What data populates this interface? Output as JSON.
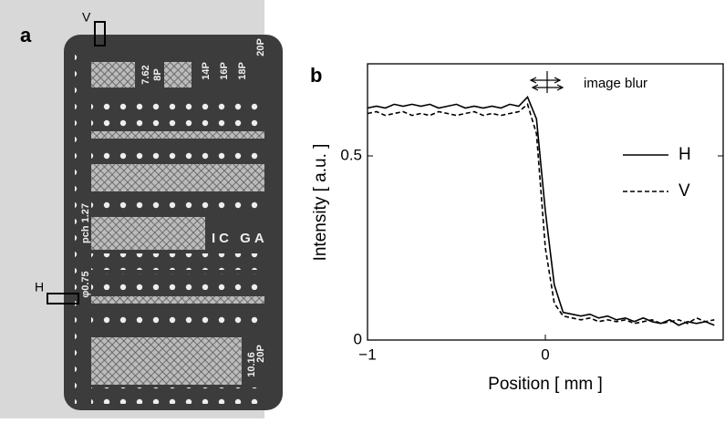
{
  "panel_a": {
    "label": "a",
    "marker_v": "V",
    "marker_h": "H",
    "texts": [
      "7.62",
      "8P",
      "14P",
      "16P",
      "18P",
      "20P",
      "IC GA",
      "pch 1.27",
      "φ0.75",
      "10.16",
      "20P"
    ]
  },
  "chart_data": {
    "type": "line",
    "panel_label": "b",
    "x_label": "Position [ mm ]",
    "y_label": "Intensity  [ a.u. ]",
    "annotation": "image blur",
    "x": [
      -1,
      -0.95,
      -0.9,
      -0.85,
      -0.8,
      -0.75,
      -0.7,
      -0.65,
      -0.6,
      -0.55,
      -0.5,
      -0.45,
      -0.4,
      -0.35,
      -0.3,
      -0.25,
      -0.2,
      -0.15,
      -0.1,
      -0.05,
      0,
      0.05,
      0.1,
      0.15,
      0.2,
      0.25,
      0.3,
      0.35,
      0.4,
      0.45,
      0.5,
      0.55,
      0.6,
      0.65,
      0.7,
      0.75,
      0.8,
      0.85,
      0.9,
      0.95
    ],
    "series": [
      {
        "name": "H",
        "color": "#000000",
        "dash": "solid",
        "values": [
          0.63,
          0.635,
          0.63,
          0.64,
          0.635,
          0.64,
          0.635,
          0.64,
          0.63,
          0.635,
          0.64,
          0.63,
          0.635,
          0.63,
          0.635,
          0.63,
          0.64,
          0.635,
          0.66,
          0.6,
          0.35,
          0.15,
          0.075,
          0.07,
          0.065,
          0.07,
          0.06,
          0.065,
          0.055,
          0.06,
          0.05,
          0.06,
          0.05,
          0.045,
          0.055,
          0.04,
          0.05,
          0.045,
          0.05,
          0.04
        ]
      },
      {
        "name": "V",
        "color": "#000000",
        "dash": "dashed",
        "values": [
          0.615,
          0.62,
          0.61,
          0.615,
          0.62,
          0.61,
          0.615,
          0.61,
          0.62,
          0.615,
          0.61,
          0.615,
          0.62,
          0.61,
          0.615,
          0.61,
          0.615,
          0.62,
          0.64,
          0.56,
          0.25,
          0.1,
          0.065,
          0.06,
          0.055,
          0.06,
          0.05,
          0.055,
          0.05,
          0.055,
          0.045,
          0.05,
          0.055,
          0.045,
          0.05,
          0.055,
          0.045,
          0.06,
          0.05,
          0.055
        ]
      }
    ],
    "xlim": [
      -1,
      1
    ],
    "ylim": [
      0,
      0.75
    ],
    "xticks": [
      {
        "value": -1,
        "label": "−1"
      },
      0
    ],
    "yticks": [
      0,
      0.5
    ]
  }
}
